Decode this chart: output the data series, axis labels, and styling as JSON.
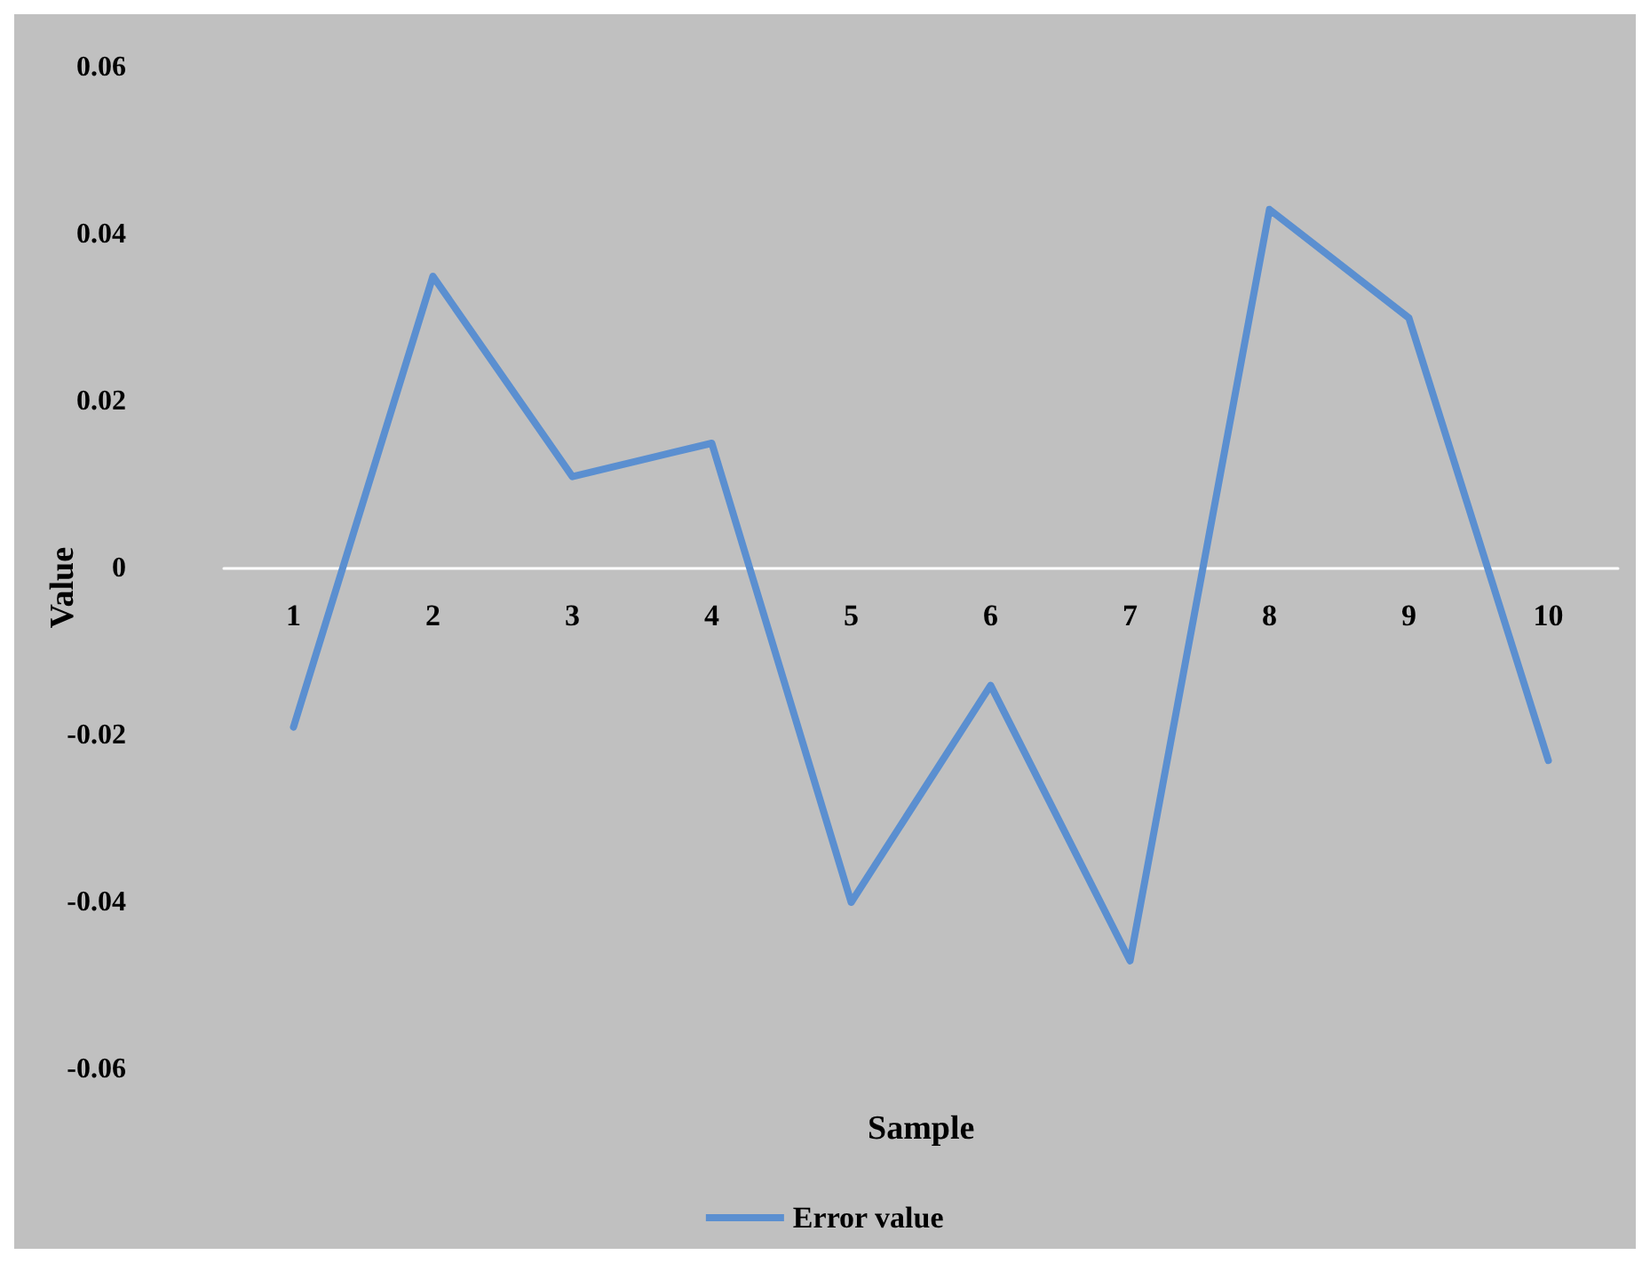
{
  "chart_data": {
    "type": "line",
    "xlabel": "Sample",
    "ylabel": "Value",
    "categories": [
      "1",
      "2",
      "3",
      "4",
      "5",
      "6",
      "7",
      "8",
      "9",
      "10"
    ],
    "series": [
      {
        "name": "Error value",
        "color": "#5b8fd0",
        "values": [
          -0.019,
          0.035,
          0.011,
          0.015,
          -0.04,
          -0.014,
          -0.047,
          0.043,
          0.03,
          -0.023
        ]
      }
    ],
    "ylim": [
      -0.06,
      0.06
    ],
    "yticks": [
      -0.06,
      -0.04,
      -0.02,
      0,
      0.02,
      0.04,
      0.06
    ],
    "grid": false,
    "legend": "bottom",
    "marker": "none",
    "line_style": "solid"
  }
}
